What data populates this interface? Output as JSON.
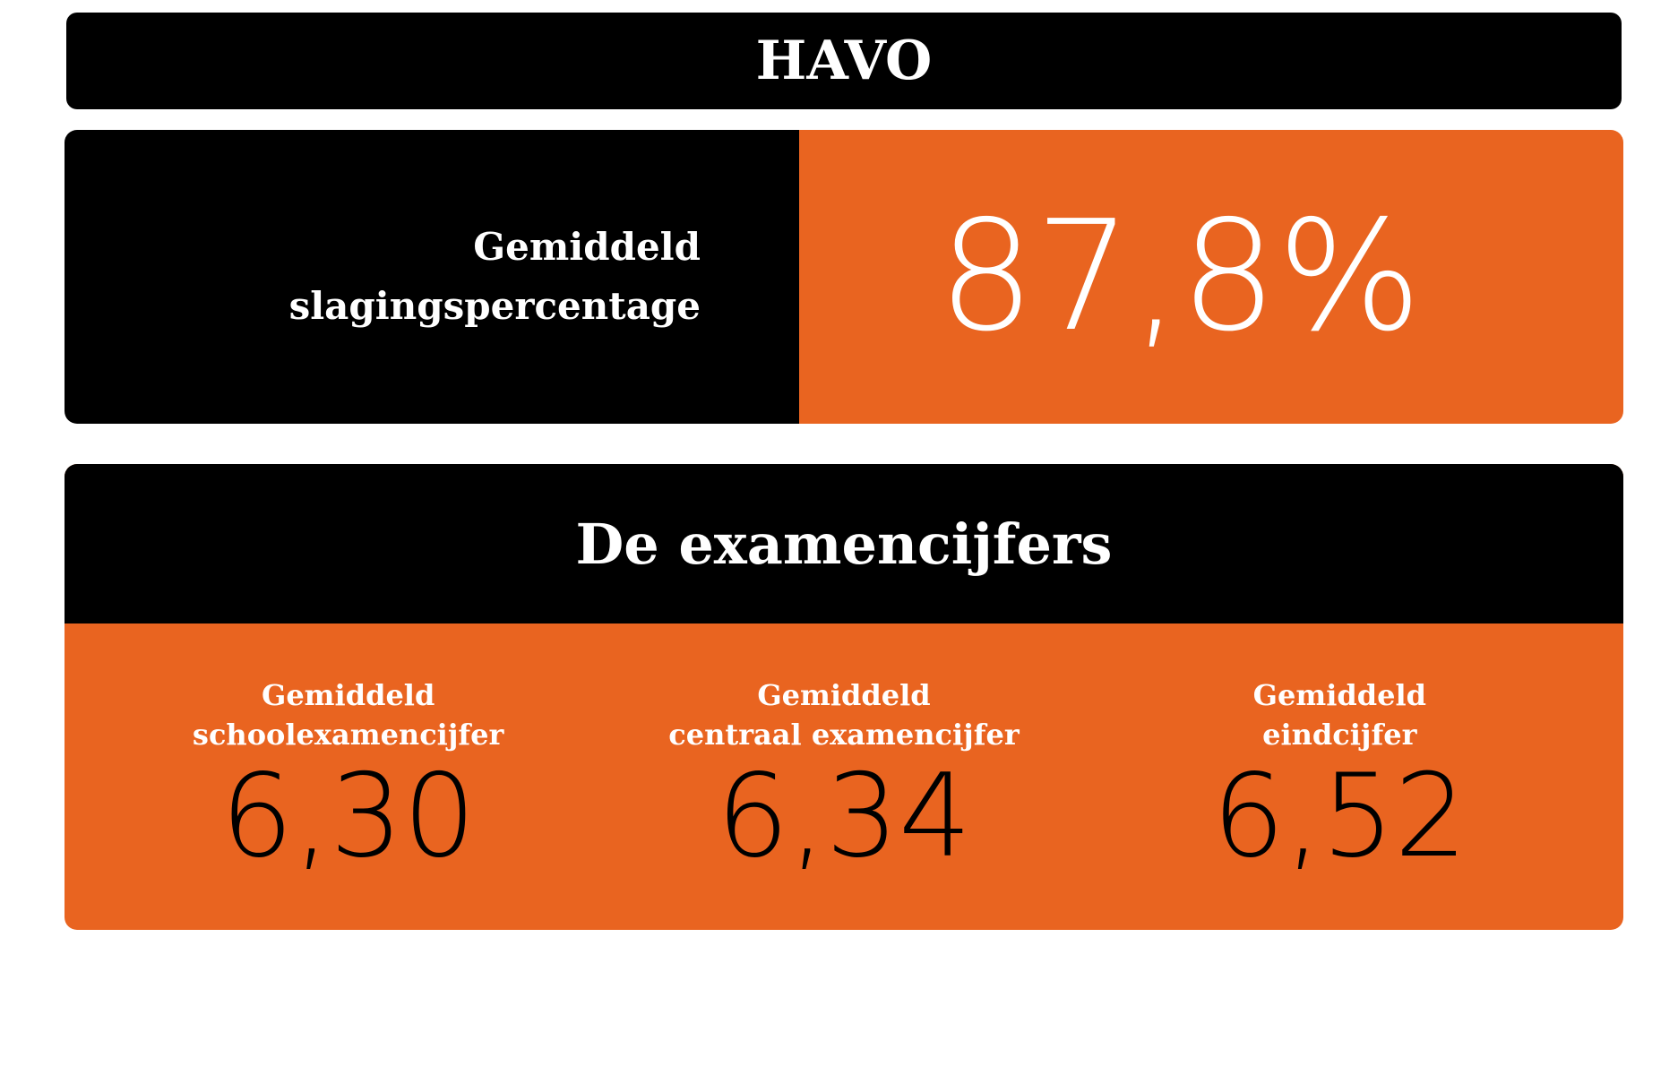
{
  "header": {
    "title": "HAVO"
  },
  "pass_rate": {
    "label_lines": [
      "Gemiddeld",
      "slagingspercentage"
    ],
    "value": "87,8%"
  },
  "grades": {
    "title": "De examencijfers",
    "items": [
      {
        "label_lines": [
          "Gemiddeld",
          "schoolexamencijfer"
        ],
        "value": "6,30"
      },
      {
        "label_lines": [
          "Gemiddeld",
          "centraal examencijfer"
        ],
        "value": "6,34"
      },
      {
        "label_lines": [
          "Gemiddeld",
          "eindcijfer"
        ],
        "value": "6,52"
      }
    ]
  }
}
